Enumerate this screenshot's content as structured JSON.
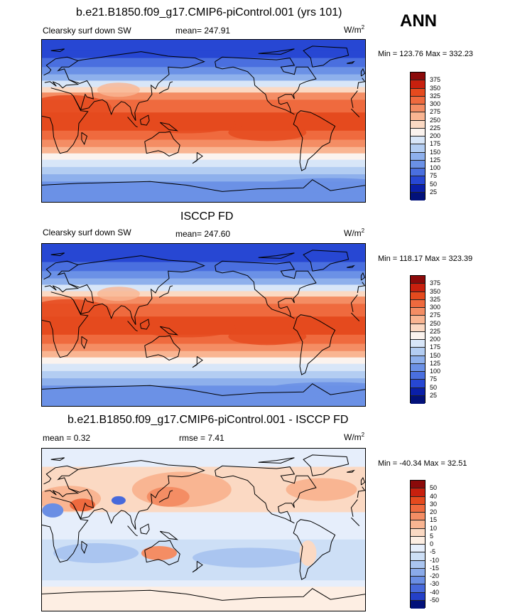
{
  "season": "ANN",
  "panels": [
    {
      "title": "b.e21.B1850.f09_g17.CMIP6-piControl.001 (yrs 101)",
      "left_label": "Clearsky surf down SW",
      "center_label": "mean= 247.91",
      "units_base": "W/m",
      "units_exp": "2",
      "minmax": "Min = 123.76 Max = 332.23",
      "colorbar_labels": [
        "375",
        "350",
        "325",
        "300",
        "275",
        "250",
        "225",
        "200",
        "175",
        "150",
        "125",
        "100",
        "75",
        "50",
        "25"
      ]
    },
    {
      "title": "ISCCP FD",
      "left_label": "Clearsky surf down SW",
      "center_label": "mean= 247.60",
      "units_base": "W/m",
      "units_exp": "2",
      "minmax": "Min = 118.17 Max = 323.39",
      "colorbar_labels": [
        "375",
        "350",
        "325",
        "300",
        "275",
        "250",
        "225",
        "200",
        "175",
        "150",
        "125",
        "100",
        "75",
        "50",
        "25"
      ]
    },
    {
      "title": "b.e21.B1850.f09_g17.CMIP6-piControl.001 - ISCCP FD",
      "left_label": "mean =   0.32",
      "center_label": "rmse =   7.41",
      "units_base": "W/m",
      "units_exp": "2",
      "minmax": "Min = -40.34 Max =  32.51",
      "colorbar_labels": [
        "50",
        "40",
        "30",
        "20",
        "15",
        "10",
        "5",
        "0",
        "-5",
        "-10",
        "-15",
        "-20",
        "-30",
        "-40",
        "-50"
      ]
    }
  ],
  "colors": {
    "abs_scale": [
      "#8b0a0a",
      "#c8200e",
      "#e54a1e",
      "#ef6a3e",
      "#f48d64",
      "#f9b592",
      "#fbd9c3",
      "#fbf3ee",
      "#d8e6f8",
      "#b3cdf2",
      "#8eb0ec",
      "#6b91e6",
      "#4a6fdf",
      "#2747d3",
      "#0a1fa8",
      "#02117a"
    ],
    "diff_scale": [
      "#8b0a0a",
      "#c8200e",
      "#e54a1e",
      "#ef6a3e",
      "#f48d64",
      "#f9b592",
      "#fbd9c3",
      "#fdeee3",
      "#e6eefb",
      "#cddff6",
      "#aac5f0",
      "#8aaae9",
      "#6a8ee4",
      "#4769db",
      "#2440c8",
      "#02117a"
    ],
    "land_line": "#000000"
  }
}
